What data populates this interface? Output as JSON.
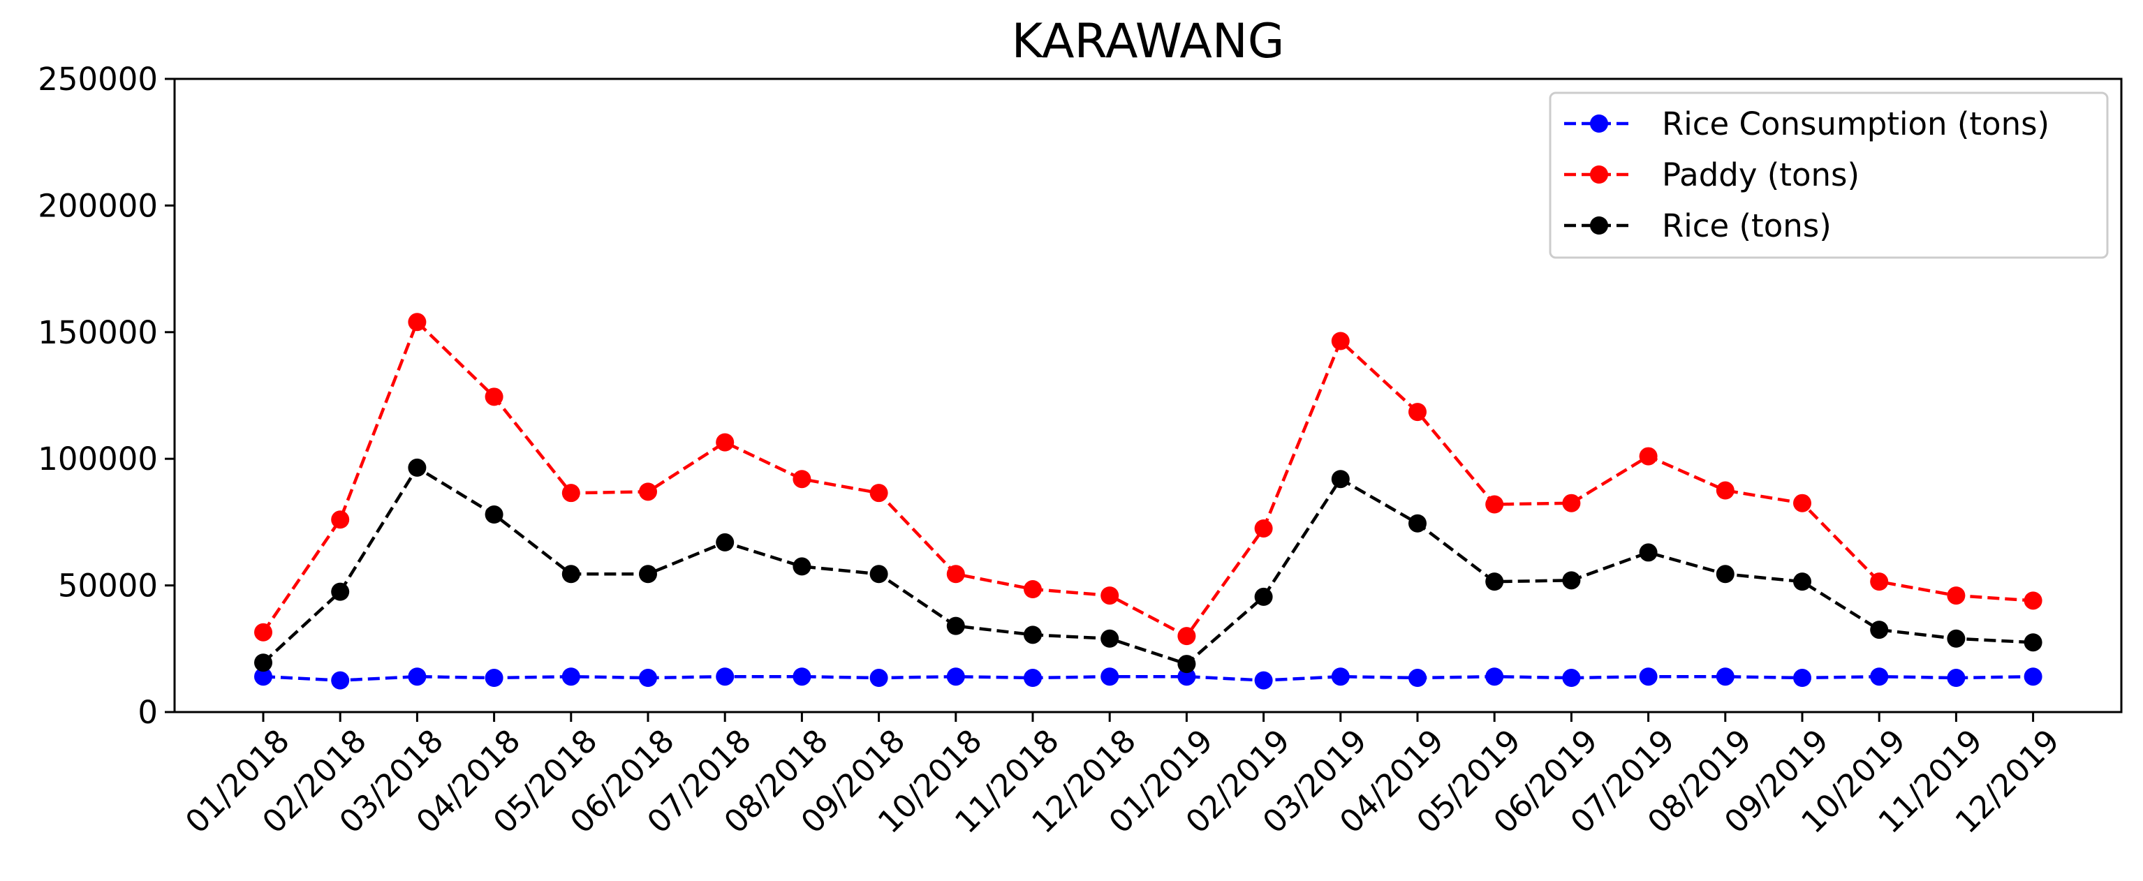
{
  "chart_data": {
    "type": "line",
    "title": "KARAWANG",
    "xlabel": "",
    "ylabel": "",
    "categories": [
      "01/2018",
      "02/2018",
      "03/2018",
      "04/2018",
      "05/2018",
      "06/2018",
      "07/2018",
      "08/2018",
      "09/2018",
      "10/2018",
      "11/2018",
      "12/2018",
      "01/2019",
      "02/2019",
      "03/2019",
      "04/2019",
      "05/2019",
      "06/2019",
      "07/2019",
      "08/2019",
      "09/2019",
      "10/2019",
      "11/2019",
      "12/2019"
    ],
    "ylim": [
      0,
      250000
    ],
    "yticks": [
      "0",
      "50000",
      "100000",
      "150000",
      "200000",
      "250000"
    ],
    "grid": false,
    "legend_position": "top-right",
    "series": [
      {
        "name": "Rice Consumption (tons)",
        "color": "#0000ff",
        "line_style": "dashed",
        "marker": "circle",
        "values": [
          14000,
          12500,
          14000,
          13500,
          14000,
          13500,
          14000,
          14000,
          13500,
          14000,
          13500,
          14000,
          14000,
          12500,
          14000,
          13500,
          14000,
          13500,
          14000,
          14000,
          13500,
          14000,
          13500,
          14000
        ]
      },
      {
        "name": "Paddy (tons)",
        "color": "#ff0000",
        "line_style": "dashed",
        "marker": "circle",
        "values": [
          31500,
          76000,
          154000,
          124500,
          86500,
          87000,
          106500,
          92000,
          86500,
          54500,
          48500,
          46000,
          30000,
          72500,
          146500,
          118500,
          82000,
          82500,
          101000,
          87500,
          82500,
          51500,
          46000,
          44000
        ]
      },
      {
        "name": "Rice (tons)",
        "color": "#000000",
        "line_style": "dashed",
        "marker": "circle",
        "values": [
          19500,
          47500,
          96500,
          78000,
          54500,
          54500,
          67000,
          57500,
          54500,
          34000,
          30500,
          29000,
          19000,
          45500,
          92000,
          74500,
          51500,
          52000,
          63000,
          54500,
          51500,
          32500,
          29000,
          27500
        ]
      }
    ]
  }
}
